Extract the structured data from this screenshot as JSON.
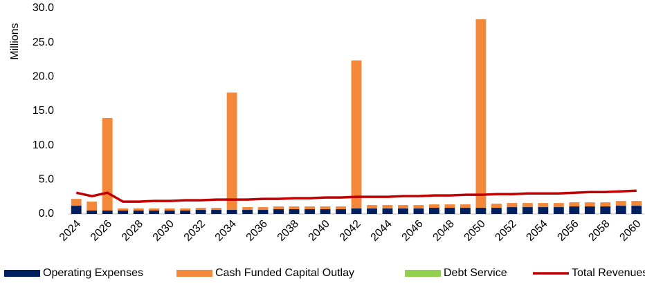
{
  "chart_data": {
    "type": "bar",
    "stacked": true,
    "ylabel": "Millions",
    "categories": [
      "2024",
      null,
      "2026",
      null,
      "2028",
      null,
      "2030",
      null,
      "2032",
      null,
      "2034",
      null,
      "2036",
      null,
      "2038",
      null,
      "2040",
      null,
      "2042",
      null,
      "2044",
      null,
      "2046",
      null,
      "2048",
      null,
      "2050",
      null,
      "2052",
      null,
      "2054",
      null,
      "2056",
      null,
      "2058",
      null,
      "2060"
    ],
    "ylim": [
      0,
      30
    ],
    "yticks": [
      {
        "value": 0,
        "label": "0.0"
      },
      {
        "value": 5,
        "label": "5.0"
      },
      {
        "value": 10,
        "label": "10.0"
      },
      {
        "value": 15,
        "label": "15.0"
      },
      {
        "value": 20,
        "label": "20.0"
      },
      {
        "value": 25,
        "label": "25.0"
      },
      {
        "value": 30,
        "label": "30.0"
      }
    ],
    "legend": "bottom",
    "series": [
      {
        "name": "Operating Expenses",
        "color": "#002060",
        "kind": "bar",
        "values": [
          1.2,
          0.5,
          0.5,
          0.5,
          0.5,
          0.5,
          0.5,
          0.5,
          0.6,
          0.6,
          0.6,
          0.6,
          0.6,
          0.7,
          0.7,
          0.7,
          0.7,
          0.7,
          0.8,
          0.8,
          0.8,
          0.8,
          0.8,
          0.9,
          0.9,
          0.9,
          0.9,
          0.9,
          1.0,
          1.0,
          1.0,
          1.0,
          1.1,
          1.1,
          1.1,
          1.2,
          1.2
        ]
      },
      {
        "name": "Cash Funded Capital Outlay",
        "color": "#f4883a",
        "kind": "bar",
        "values": [
          1.0,
          1.3,
          13.5,
          0.3,
          0.3,
          0.3,
          0.3,
          0.3,
          0.3,
          0.3,
          17.1,
          0.4,
          0.4,
          0.4,
          0.4,
          0.4,
          0.4,
          0.4,
          21.6,
          0.5,
          0.5,
          0.5,
          0.5,
          0.5,
          0.5,
          0.5,
          27.5,
          0.6,
          0.6,
          0.6,
          0.6,
          0.6,
          0.6,
          0.6,
          0.6,
          0.7,
          0.7
        ]
      },
      {
        "name": "Debt Service",
        "color": "#92d050",
        "kind": "bar",
        "values": [
          0,
          0,
          0,
          0,
          0,
          0,
          0,
          0,
          0,
          0,
          0,
          0,
          0,
          0,
          0,
          0,
          0,
          0,
          0,
          0,
          0,
          0,
          0,
          0,
          0,
          0,
          0,
          0,
          0,
          0,
          0,
          0,
          0,
          0,
          0,
          0,
          0
        ]
      },
      {
        "name": "Total Revenues",
        "color": "#c00000",
        "kind": "line",
        "values": [
          3.1,
          2.6,
          3.1,
          1.8,
          1.8,
          1.9,
          1.9,
          2.0,
          2.0,
          2.1,
          2.1,
          2.1,
          2.2,
          2.2,
          2.3,
          2.3,
          2.4,
          2.4,
          2.5,
          2.5,
          2.5,
          2.6,
          2.6,
          2.7,
          2.7,
          2.8,
          2.8,
          2.9,
          2.9,
          3.0,
          3.0,
          3.0,
          3.1,
          3.2,
          3.2,
          3.3,
          3.4
        ]
      }
    ]
  }
}
